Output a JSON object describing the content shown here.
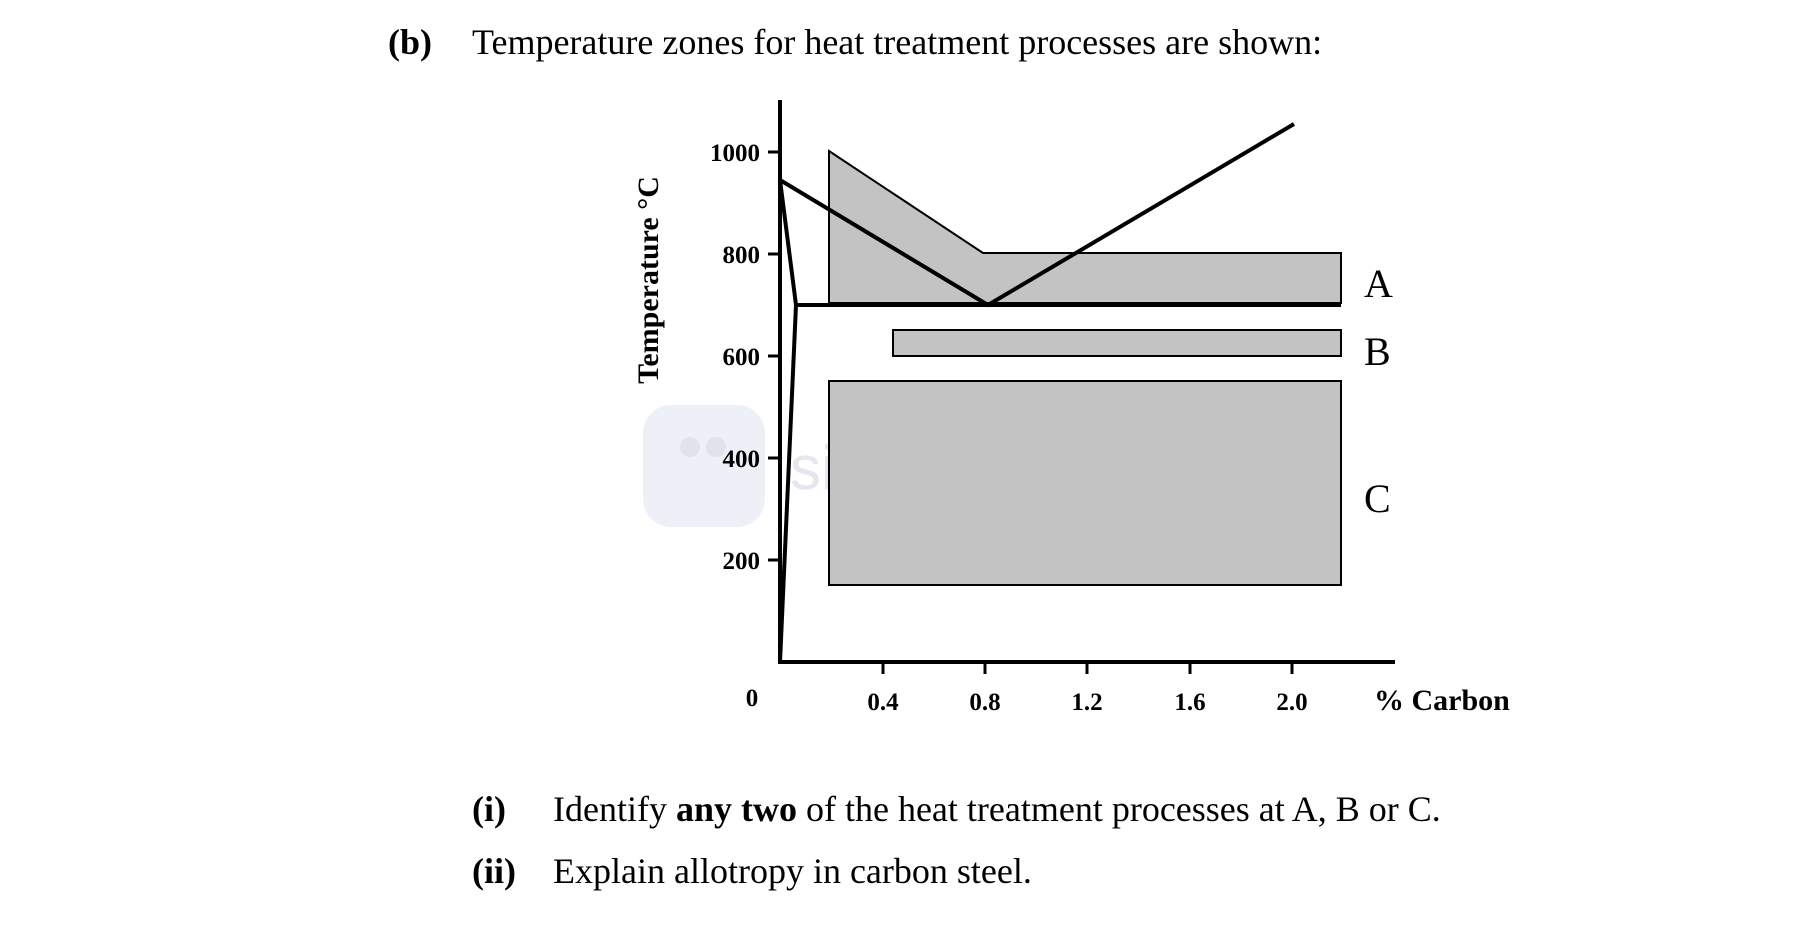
{
  "question_b": {
    "label": "(b)",
    "text": "Temperature zones for heat treatment processes are shown:"
  },
  "chart_data": {
    "type": "diagram",
    "ylabel": "Temperature °C",
    "xlabel": "% Carbon",
    "origin_label": "0",
    "y_ticks": [
      "1000",
      "800",
      "600",
      "400",
      "200"
    ],
    "x_ticks": [
      "0.4",
      "0.8",
      "1.2",
      "1.6",
      "2.0"
    ],
    "x_range": [
      0,
      2.4
    ],
    "y_range": [
      0,
      1100
    ],
    "zone_labels": [
      "A",
      "B",
      "C"
    ],
    "zone_fill": "#c3c3c3"
  },
  "watermark": {
    "text": "simplestudy"
  },
  "question_i": {
    "label": "(i)",
    "text_before": "Identify ",
    "text_bold": "any two",
    "text_after": " of the heat treatment processes at A, B or C."
  },
  "question_ii": {
    "label": "(ii)",
    "text": "Explain allotropy in carbon steel."
  }
}
